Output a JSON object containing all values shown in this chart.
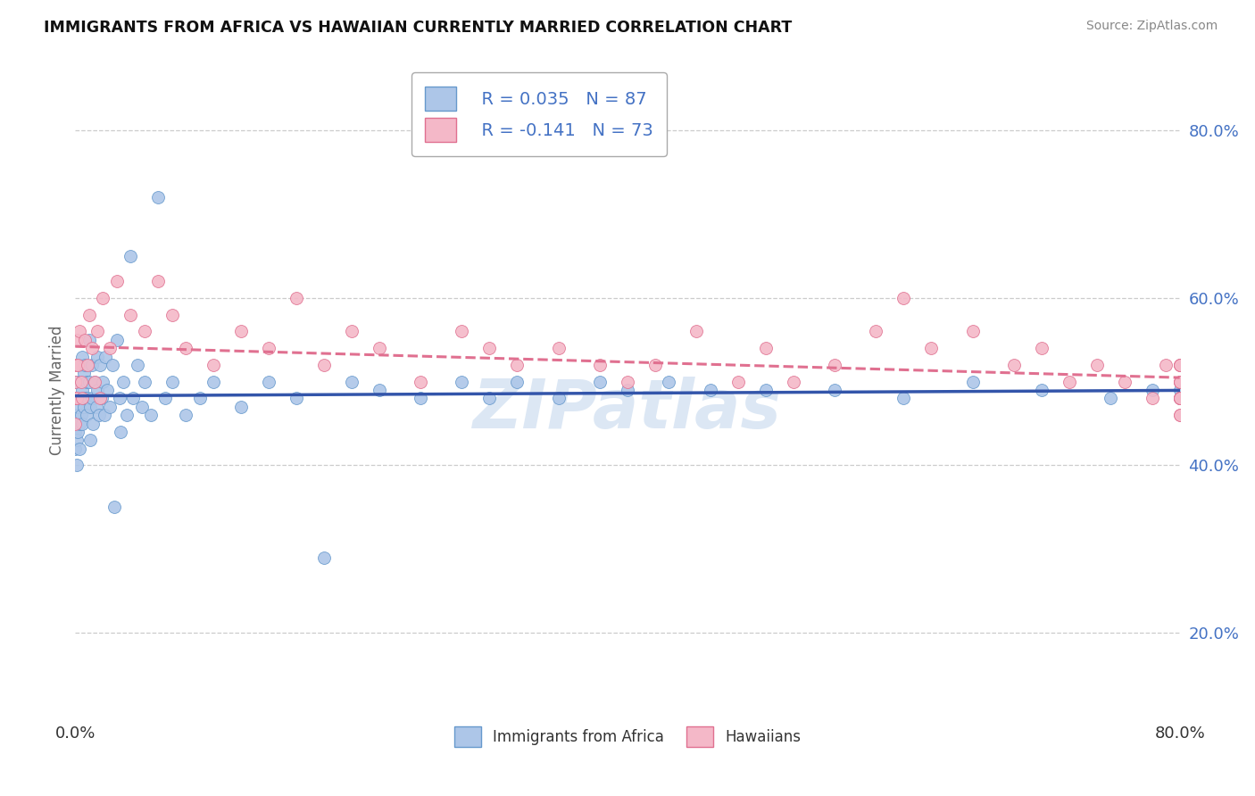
{
  "title": "IMMIGRANTS FROM AFRICA VS HAWAIIAN CURRENTLY MARRIED CORRELATION CHART",
  "source_text": "Source: ZipAtlas.com",
  "ylabel": "Currently Married",
  "xmin": 0.0,
  "xmax": 0.8,
  "ymin": 0.1,
  "ymax": 0.88,
  "series1_color": "#adc6e8",
  "series1_edge": "#6699cc",
  "series2_color": "#f4b8c8",
  "series2_edge": "#e07090",
  "line1_color": "#3355aa",
  "line2_color": "#e07090",
  "watermark": "ZIPatlas",
  "watermark_color": "#c5d8ee",
  "legend_R1": "R = 0.035",
  "legend_N1": "N = 87",
  "legend_R2": "R = -0.141",
  "legend_N2": "N = 73",
  "legend_labels": [
    "Immigrants from Africa",
    "Hawaiians"
  ],
  "series1_x": [
    0.0,
    0.0,
    0.0,
    0.001,
    0.001,
    0.001,
    0.001,
    0.002,
    0.002,
    0.003,
    0.003,
    0.003,
    0.003,
    0.004,
    0.004,
    0.005,
    0.005,
    0.005,
    0.006,
    0.006,
    0.007,
    0.007,
    0.008,
    0.008,
    0.009,
    0.01,
    0.01,
    0.011,
    0.011,
    0.012,
    0.012,
    0.013,
    0.014,
    0.015,
    0.016,
    0.016,
    0.017,
    0.018,
    0.019,
    0.02,
    0.021,
    0.022,
    0.023,
    0.025,
    0.027,
    0.028,
    0.03,
    0.032,
    0.033,
    0.035,
    0.037,
    0.04,
    0.042,
    0.045,
    0.048,
    0.05,
    0.055,
    0.06,
    0.065,
    0.07,
    0.08,
    0.09,
    0.1,
    0.12,
    0.14,
    0.16,
    0.18,
    0.2,
    0.22,
    0.25,
    0.28,
    0.3,
    0.32,
    0.35,
    0.38,
    0.4,
    0.43,
    0.46,
    0.5,
    0.55,
    0.6,
    0.65,
    0.7,
    0.75,
    0.78,
    0.8,
    0.8
  ],
  "series1_y": [
    0.48,
    0.44,
    0.42,
    0.5,
    0.46,
    0.43,
    0.4,
    0.47,
    0.44,
    0.52,
    0.48,
    0.45,
    0.42,
    0.5,
    0.46,
    0.53,
    0.49,
    0.45,
    0.51,
    0.47,
    0.52,
    0.48,
    0.5,
    0.46,
    0.48,
    0.55,
    0.5,
    0.47,
    0.43,
    0.52,
    0.48,
    0.45,
    0.5,
    0.47,
    0.53,
    0.49,
    0.46,
    0.52,
    0.48,
    0.5,
    0.46,
    0.53,
    0.49,
    0.47,
    0.52,
    0.35,
    0.55,
    0.48,
    0.44,
    0.5,
    0.46,
    0.65,
    0.48,
    0.52,
    0.47,
    0.5,
    0.46,
    0.72,
    0.48,
    0.5,
    0.46,
    0.48,
    0.5,
    0.47,
    0.5,
    0.48,
    0.29,
    0.5,
    0.49,
    0.48,
    0.5,
    0.48,
    0.5,
    0.48,
    0.5,
    0.49,
    0.5,
    0.49,
    0.49,
    0.49,
    0.48,
    0.5,
    0.49,
    0.48,
    0.49,
    0.49,
    0.48
  ],
  "series2_x": [
    0.0,
    0.0,
    0.0,
    0.0,
    0.001,
    0.001,
    0.002,
    0.003,
    0.004,
    0.005,
    0.007,
    0.009,
    0.01,
    0.012,
    0.014,
    0.016,
    0.018,
    0.02,
    0.025,
    0.03,
    0.04,
    0.05,
    0.06,
    0.07,
    0.08,
    0.1,
    0.12,
    0.14,
    0.16,
    0.18,
    0.2,
    0.22,
    0.25,
    0.28,
    0.3,
    0.32,
    0.35,
    0.38,
    0.4,
    0.42,
    0.45,
    0.48,
    0.5,
    0.52,
    0.55,
    0.58,
    0.6,
    0.62,
    0.65,
    0.68,
    0.7,
    0.72,
    0.74,
    0.76,
    0.78,
    0.79,
    0.8,
    0.8,
    0.8,
    0.8,
    0.8,
    0.8,
    0.8,
    0.8,
    0.8,
    0.8,
    0.8,
    0.8,
    0.8,
    0.8,
    0.8,
    0.8,
    0.8
  ],
  "series2_y": [
    0.52,
    0.48,
    0.45,
    0.5,
    0.55,
    0.48,
    0.52,
    0.56,
    0.5,
    0.48,
    0.55,
    0.52,
    0.58,
    0.54,
    0.5,
    0.56,
    0.48,
    0.6,
    0.54,
    0.62,
    0.58,
    0.56,
    0.62,
    0.58,
    0.54,
    0.52,
    0.56,
    0.54,
    0.6,
    0.52,
    0.56,
    0.54,
    0.5,
    0.56,
    0.54,
    0.52,
    0.54,
    0.52,
    0.5,
    0.52,
    0.56,
    0.5,
    0.54,
    0.5,
    0.52,
    0.56,
    0.6,
    0.54,
    0.56,
    0.52,
    0.54,
    0.5,
    0.52,
    0.5,
    0.48,
    0.52,
    0.48,
    0.5,
    0.48,
    0.52,
    0.5,
    0.48,
    0.52,
    0.5,
    0.48,
    0.5,
    0.46,
    0.52,
    0.48,
    0.48,
    0.52,
    0.46,
    0.48
  ]
}
